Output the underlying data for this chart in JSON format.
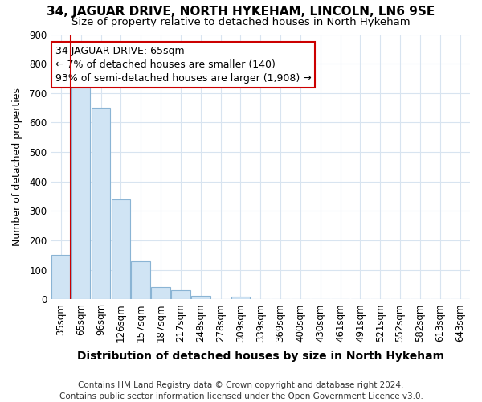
{
  "title": "34, JAGUAR DRIVE, NORTH HYKEHAM, LINCOLN, LN6 9SE",
  "subtitle": "Size of property relative to detached houses in North Hykeham",
  "xlabel": "Distribution of detached houses by size in North Hykeham",
  "ylabel": "Number of detached properties",
  "categories": [
    "35sqm",
    "65sqm",
    "96sqm",
    "126sqm",
    "157sqm",
    "187sqm",
    "217sqm",
    "248sqm",
    "278sqm",
    "309sqm",
    "339sqm",
    "369sqm",
    "400sqm",
    "430sqm",
    "461sqm",
    "491sqm",
    "521sqm",
    "552sqm",
    "582sqm",
    "613sqm",
    "643sqm"
  ],
  "values": [
    150,
    720,
    650,
    340,
    128,
    42,
    32,
    13,
    0,
    10,
    0,
    0,
    0,
    0,
    0,
    0,
    0,
    0,
    0,
    0,
    0
  ],
  "bar_color": "#d0e4f4",
  "bar_edge_color": "#8ab4d4",
  "highlight_bar_index": 1,
  "highlight_line_color": "#cc0000",
  "ylim": [
    0,
    900
  ],
  "yticks": [
    0,
    100,
    200,
    300,
    400,
    500,
    600,
    700,
    800,
    900
  ],
  "annotation_line1": "34 JAGUAR DRIVE: 65sqm",
  "annotation_line2": "← 7% of detached houses are smaller (140)",
  "annotation_line3": "93% of semi-detached houses are larger (1,908) →",
  "annotation_box_color": "#ffffff",
  "annotation_box_edge_color": "#cc0000",
  "footer_line1": "Contains HM Land Registry data © Crown copyright and database right 2024.",
  "footer_line2": "Contains public sector information licensed under the Open Government Licence v3.0.",
  "background_color": "#ffffff",
  "grid_color": "#d8e4f0",
  "title_fontsize": 11,
  "subtitle_fontsize": 9.5,
  "xlabel_fontsize": 10,
  "ylabel_fontsize": 9,
  "tick_fontsize": 8.5,
  "footer_fontsize": 7.5,
  "annotation_fontsize": 9
}
